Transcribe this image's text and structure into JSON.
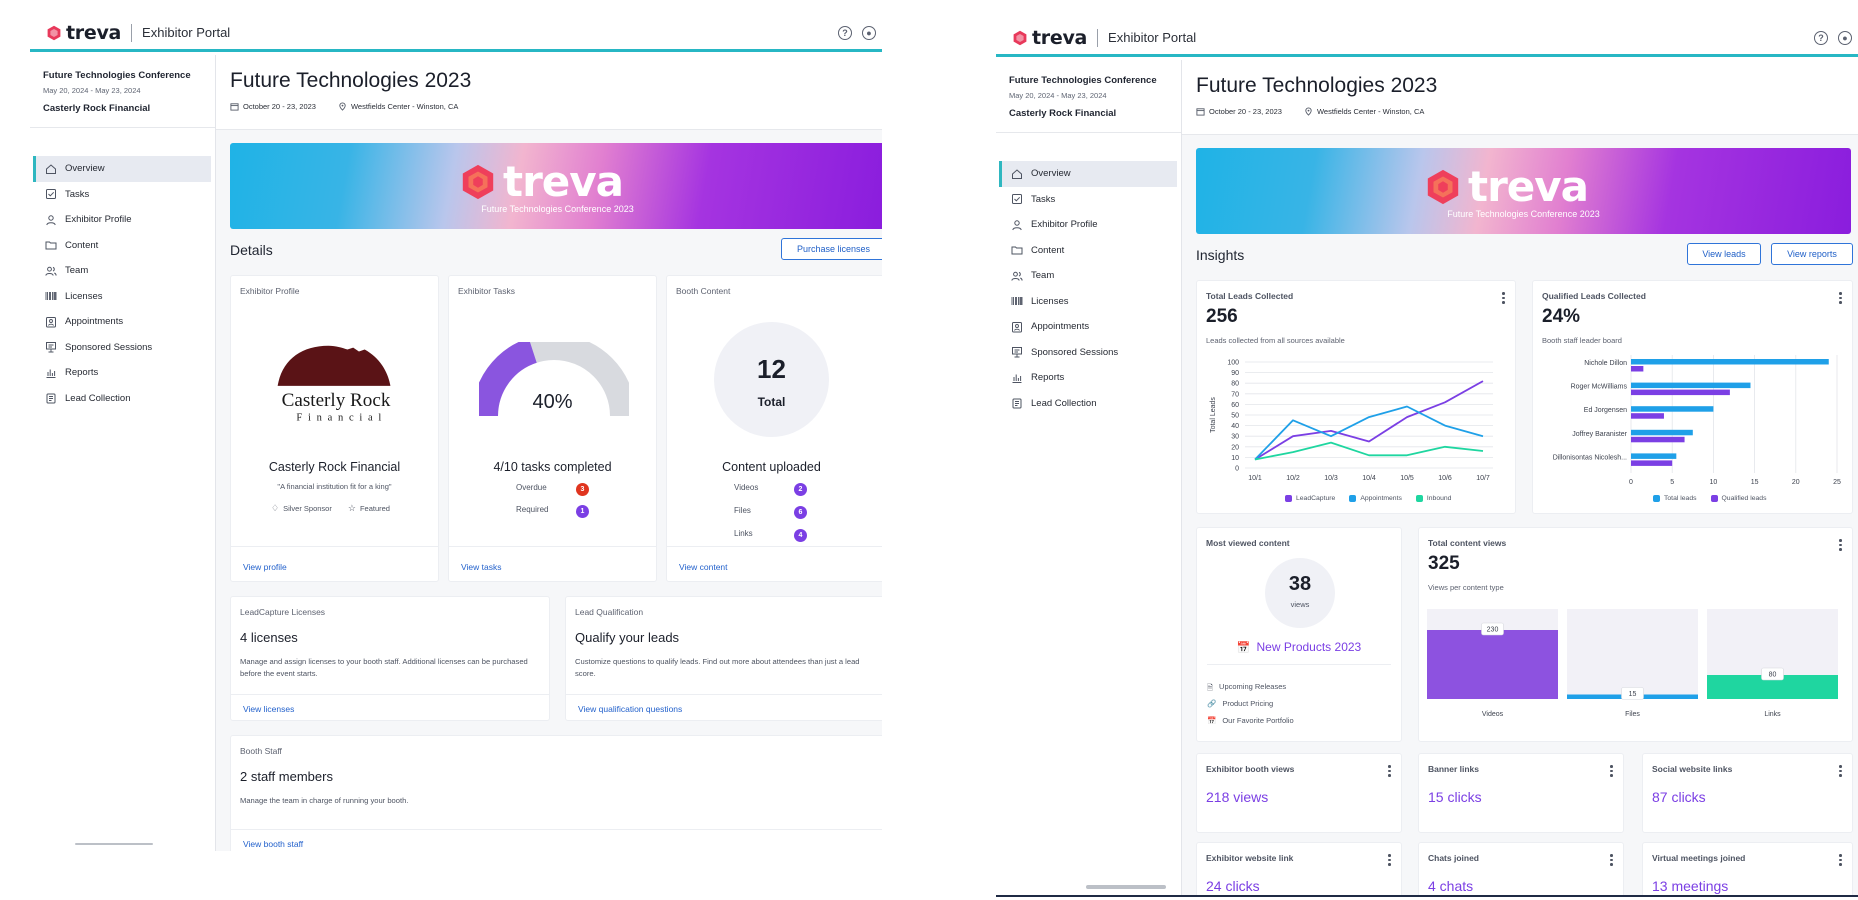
{
  "app": {
    "brand": "treva",
    "portal_title": "Exhibitor Portal"
  },
  "colors": {
    "accent": "#27b7c4",
    "purple": "#7b3fe4",
    "blue": "#1fa0e8",
    "teal": "#1fd6a0",
    "link": "#2462cc",
    "danger": "#e0351f"
  },
  "event": {
    "name": "Future Technologies Conference",
    "dates": "May 20, 2024  -  May 23, 2024",
    "company": "Casterly Rock Financial"
  },
  "nav": [
    {
      "label": "Overview",
      "icon": "home-icon"
    },
    {
      "label": "Tasks",
      "icon": "checkbox-icon"
    },
    {
      "label": "Exhibitor Profile",
      "icon": "person-icon"
    },
    {
      "label": "Content",
      "icon": "folder-icon"
    },
    {
      "label": "Team",
      "icon": "team-icon"
    },
    {
      "label": "Licenses",
      "icon": "barcode-icon"
    },
    {
      "label": "Appointments",
      "icon": "calendar-person-icon"
    },
    {
      "label": "Sponsored Sessions",
      "icon": "presentation-icon"
    },
    {
      "label": "Reports",
      "icon": "bar-chart-icon"
    },
    {
      "label": "Lead Collection",
      "icon": "clipboard-icon"
    }
  ],
  "page": {
    "title": "Future Technologies 2023",
    "dates": "October 20 - 23, 2023",
    "location": "Westfields Center - Winston, CA"
  },
  "banner": {
    "word": "treva",
    "subtitle": "Future Technologies Conference 2023"
  },
  "left": {
    "details_title": "Details",
    "purchase_button": "Purchase licenses",
    "profile_card": {
      "label": "Exhibitor Profile",
      "logo_line1": "Casterly Rock",
      "logo_line2": "Financial",
      "name": "Casterly Rock Financial",
      "tagline": "\"A financial institution fit for a king\"",
      "tag1": "Silver Sponsor",
      "tag2": "Featured",
      "link": "View profile"
    },
    "tasks_card": {
      "label": "Exhibitor Tasks",
      "percent_text": "40%",
      "progress": 0.4,
      "summary": "4/10 tasks completed",
      "rows": [
        {
          "label": "Overdue",
          "count": "3",
          "color": "#e0351f"
        },
        {
          "label": "Required",
          "count": "1",
          "color": "#7b3fe4"
        }
      ],
      "link": "View tasks"
    },
    "booth_card": {
      "label": "Booth Content",
      "total": "12",
      "total_label": "Total",
      "summary": "Content uploaded",
      "rows": [
        {
          "label": "Videos",
          "count": "2"
        },
        {
          "label": "Files",
          "count": "6"
        },
        {
          "label": "Links",
          "count": "4"
        }
      ],
      "link": "View content"
    },
    "licenses_card": {
      "label": "LeadCapture Licenses",
      "heading": "4 licenses",
      "text": "Manage and assign licenses to your booth staff. Additional licenses can be purchased before the event starts.",
      "link": "View licenses"
    },
    "qualify_card": {
      "label": "Lead Qualification",
      "heading": "Qualify your leads",
      "text": "Customize questions to qualify leads. Find out more about attendees than just a lead score.",
      "link": "View qualification questions"
    },
    "staff_card": {
      "label": "Booth Staff",
      "heading": "2 staff members",
      "text": "Manage the team in charge of running your booth.",
      "link": "View booth staff"
    }
  },
  "right": {
    "insights_title": "Insights",
    "view_leads_button": "View leads",
    "view_reports_button": "View reports",
    "leads_card": {
      "label": "Total Leads Collected",
      "value": "256",
      "desc": "Leads collected from all sources available",
      "ylabel": "Total Leads"
    },
    "qualified_card": {
      "label": "Qualified Leads Collected",
      "value": "24%",
      "desc": "Booth staff leader board"
    },
    "most_viewed_card": {
      "label": "Most viewed content",
      "count": "38",
      "count_label": "views",
      "title": "New Products 2023",
      "items": [
        "Upcoming Releases",
        "Product Pricing",
        "Our Favorite Portfolio"
      ]
    },
    "content_views_card": {
      "label": "Total content views",
      "value": "325",
      "desc": "Views per content type"
    },
    "metrics": [
      {
        "label": "Exhibitor booth views",
        "value": "218 views"
      },
      {
        "label": "Banner links",
        "value": "15 clicks"
      },
      {
        "label": "Social website links",
        "value": "87 clicks"
      },
      {
        "label": "Exhibitor website link",
        "value": "24 clicks"
      },
      {
        "label": "Chats joined",
        "value": "4 chats"
      },
      {
        "label": "Virtual meetings joined",
        "value": "13 meetings"
      }
    ]
  },
  "chart_data": [
    {
      "type": "line",
      "x": [
        "10/1",
        "10/2",
        "10/3",
        "10/4",
        "10/5",
        "10/6",
        "10/7"
      ],
      "ylim": [
        0,
        100
      ],
      "yticks": [
        0,
        10,
        20,
        30,
        40,
        50,
        60,
        70,
        80,
        90,
        100
      ],
      "ylabel": "Total Leads",
      "series": [
        {
          "name": "LeadCapture",
          "color": "#7b3fe4",
          "values": [
            8,
            30,
            35,
            25,
            48,
            62,
            82
          ]
        },
        {
          "name": "Appointments",
          "color": "#1fa0e8",
          "values": [
            8,
            45,
            30,
            48,
            58,
            40,
            30
          ]
        },
        {
          "name": "Inbound",
          "color": "#1fd6a0",
          "values": [
            8,
            15,
            24,
            12,
            12,
            20,
            16
          ]
        }
      ],
      "legend": "bottom",
      "grid": true
    },
    {
      "type": "bar",
      "orientation": "horizontal",
      "categories": [
        "Nichole Dillon",
        "Roger McWilliams",
        "Ed Jorgensen",
        "Joffrey Baranister",
        "Dillonisontas Nicolesh..."
      ],
      "xlim": [
        0,
        25
      ],
      "xticks": [
        0,
        5,
        10,
        15,
        20,
        25
      ],
      "series": [
        {
          "name": "Total leads",
          "color": "#1fa0e8",
          "values": [
            24,
            14.5,
            10,
            7.5,
            5.5
          ]
        },
        {
          "name": "Qualified leads",
          "color": "#7b3fe4",
          "values": [
            1.5,
            12,
            4,
            6.5,
            5
          ]
        }
      ],
      "legend": "bottom",
      "grid": true
    },
    {
      "type": "bar",
      "categories": [
        "Videos",
        "Files",
        "Links"
      ],
      "values": [
        230,
        15,
        80
      ],
      "labels": [
        "230",
        "15",
        "80"
      ],
      "colors": [
        "#8d52e0",
        "#1fa0e8",
        "#1fd6a0"
      ],
      "ylim": [
        0,
        300
      ]
    }
  ]
}
